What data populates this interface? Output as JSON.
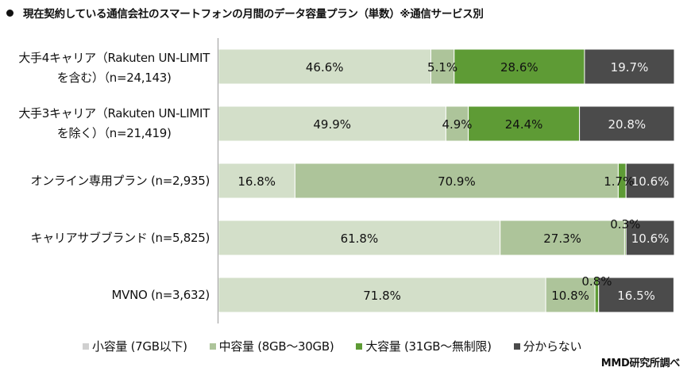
{
  "chart_data": {
    "type": "bar",
    "orientation": "horizontal-stacked-100",
    "title": "現在契約している通信会社のスマートフォンの月間のデータ容量プラン（単数）※通信サービス別",
    "categories": [
      [
        "大手4キャリア（Rakuten UN-LIMIT",
        "を含む）（n=24,143)"
      ],
      [
        "大手3キャリア（Rakuten UN-LIMIT",
        "を除く）（n=21,419)"
      ],
      [
        "オンライン専用プラン (n=2,935)"
      ],
      [
        "キャリアサブブランド (n=5,825)"
      ],
      [
        "MVNO (n=3,632)"
      ]
    ],
    "series": [
      {
        "name": "小容量 (7GB以下)",
        "color": "#d3dfc9",
        "text_color": "#111111",
        "values": [
          46.6,
          49.9,
          16.8,
          61.8,
          71.8
        ],
        "labels": [
          "46.6%",
          "49.9%",
          "16.8%",
          "61.8%",
          "71.8%"
        ]
      },
      {
        "name": "中容量 (8GB～30GB)",
        "color": "#adc49a",
        "text_color": "#111111",
        "values": [
          5.1,
          4.9,
          70.9,
          27.3,
          10.8
        ],
        "labels": [
          "5.1%",
          "4.9%",
          "70.9%",
          "27.3%",
          "10.8%"
        ]
      },
      {
        "name": "大容量 (31GB～無制限)",
        "color": "#5e9b35",
        "text_color": "#111111",
        "values": [
          28.6,
          24.4,
          1.7,
          0.3,
          0.8
        ],
        "labels": [
          "28.6%",
          "24.4%",
          "1.7%",
          "0.3%",
          "0.8%"
        ]
      },
      {
        "name": "分からない",
        "color": "#4b4b4b",
        "text_color": "#f2f2f2",
        "values": [
          19.7,
          20.8,
          10.6,
          10.6,
          16.5
        ],
        "labels": [
          "19.7%",
          "20.8%",
          "10.6%",
          "10.6%",
          "16.5%"
        ]
      }
    ],
    "xlim": [
      0,
      100
    ],
    "grid": false,
    "legend": "bottom"
  },
  "credit": "MMD研究所調べ"
}
